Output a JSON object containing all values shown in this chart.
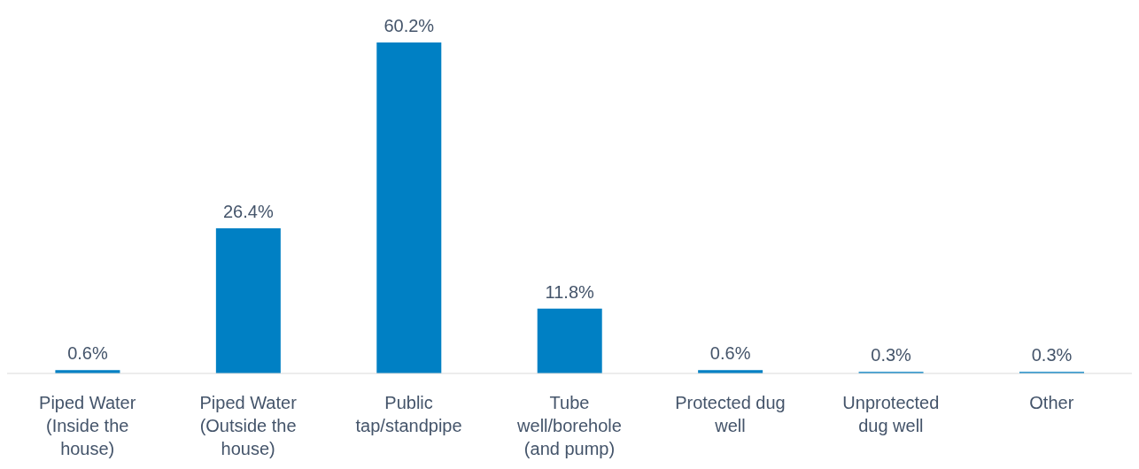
{
  "chart_data": {
    "type": "bar",
    "categories": [
      "Piped Water (Inside the house)",
      "Piped Water (Outside the house)",
      "Public tap/standpipe",
      "Tube well/borehole (and pump)",
      "Protected dug well",
      "Unprotected dug well",
      "Other"
    ],
    "values": [
      0.6,
      26.4,
      60.2,
      11.8,
      0.6,
      0.3,
      0.3
    ],
    "color": "#0080c4",
    "value_labels": [
      "0.6%",
      "26.4%",
      "60.2%",
      "11.8%",
      "0.6%",
      "0.3%",
      "0.3%"
    ]
  }
}
